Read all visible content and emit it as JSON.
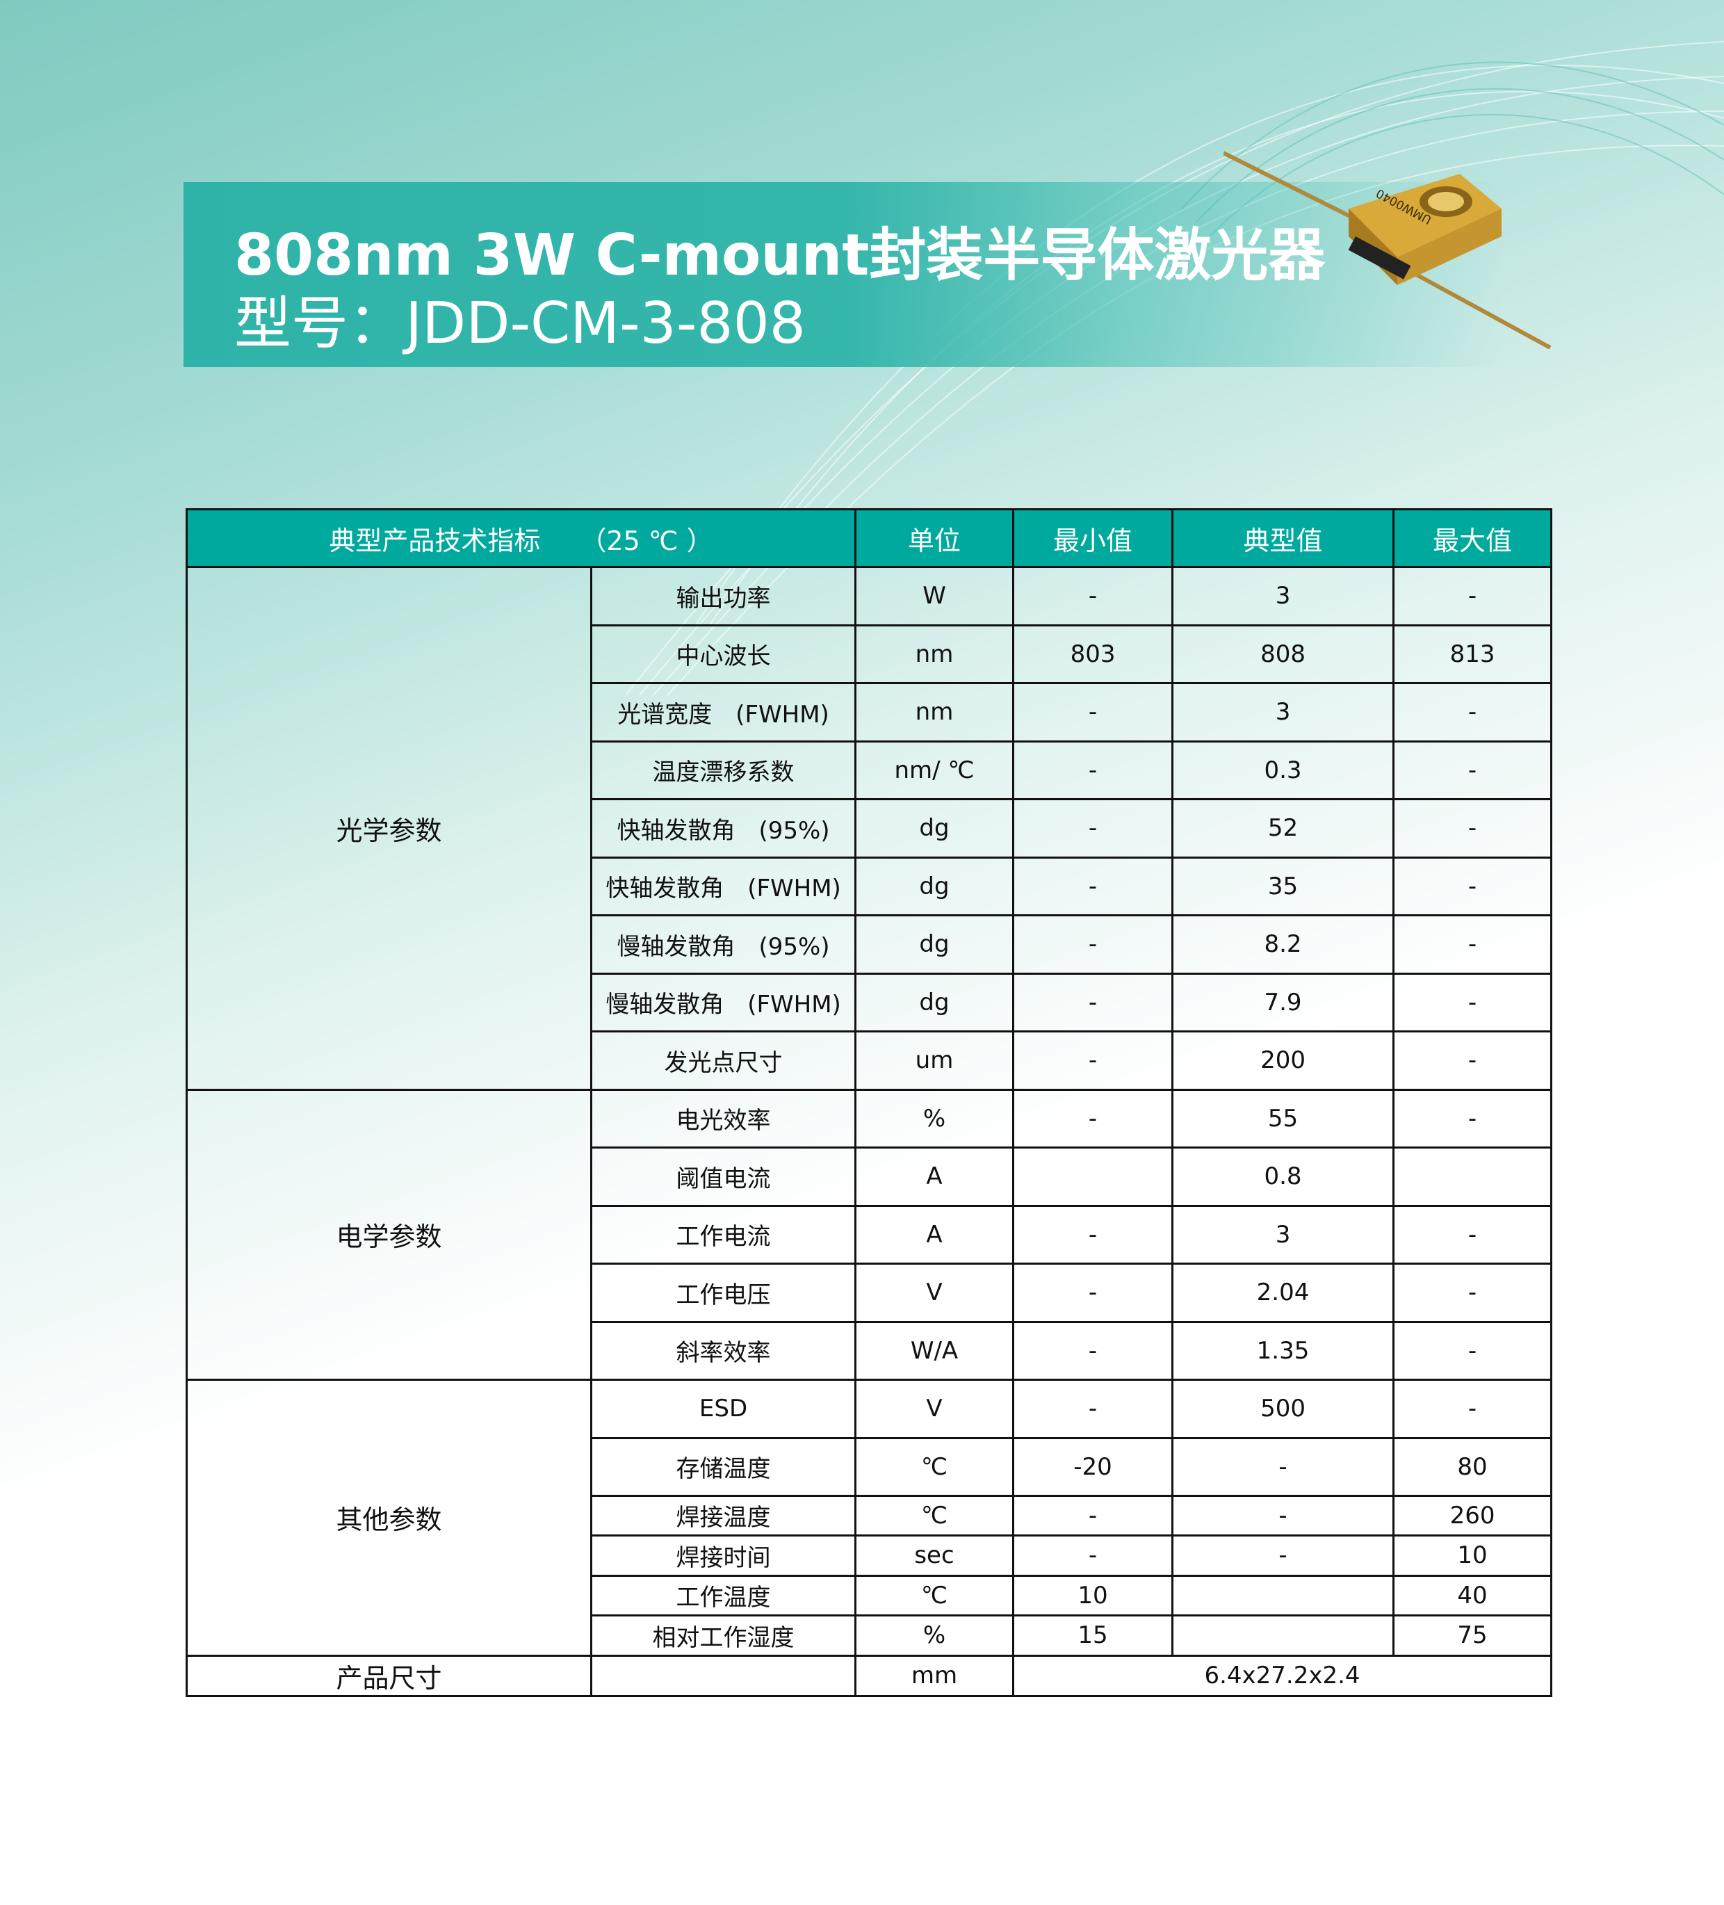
{
  "header": {
    "title": "808nm 3W C-mount封装半导体激光器",
    "model": "型号：JDD-CM-3-808"
  },
  "product_image": {
    "label": "UMW0040"
  },
  "table": {
    "columns": [
      "典型产品技术指标　　（25 ℃ ）",
      "单位",
      "最小值",
      "典型值",
      "最大值"
    ],
    "groups": [
      {
        "name": "光学参数",
        "rows": [
          [
            "输出功率",
            "W",
            "-",
            "3",
            "-"
          ],
          [
            "中心波长",
            "nm",
            "803",
            "808",
            "813"
          ],
          [
            "光谱宽度　(FWHM)",
            "nm",
            "-",
            "3",
            "-"
          ],
          [
            "温度漂移系数",
            "nm/ ℃",
            "-",
            "0.3",
            "-"
          ],
          [
            "快轴发散角　(95%)",
            "dg",
            "-",
            "52",
            "-"
          ],
          [
            "快轴发散角　(FWHM)",
            "dg",
            "-",
            "35",
            "-"
          ],
          [
            "慢轴发散角　(95%)",
            "dg",
            "-",
            "8.2",
            "-"
          ],
          [
            "慢轴发散角　(FWHM)",
            "dg",
            "-",
            "7.9",
            "-"
          ],
          [
            "发光点尺寸",
            "um",
            "-",
            "200",
            "-"
          ]
        ]
      },
      {
        "name": "电学参数",
        "rows": [
          [
            "电光效率",
            "%",
            "-",
            "55",
            "-"
          ],
          [
            "阈值电流",
            "A",
            "",
            "0.8",
            ""
          ],
          [
            "工作电流",
            "A",
            "-",
            "3",
            "-"
          ],
          [
            "工作电压",
            "V",
            "-",
            "2.04",
            "-"
          ],
          [
            "斜率效率",
            "W/A",
            "-",
            "1.35",
            "-"
          ]
        ]
      },
      {
        "name": "其他参数",
        "rows": [
          [
            "ESD",
            "V",
            "-",
            "500",
            "-"
          ],
          [
            "存储温度",
            "℃",
            "-20",
            "-",
            "80"
          ],
          [
            "焊接温度",
            "℃",
            "-",
            "-",
            "260"
          ],
          [
            "焊接时间",
            "sec",
            "-",
            "-",
            "10"
          ],
          [
            "工作温度",
            "℃",
            "10",
            "",
            "40"
          ],
          [
            "相对工作湿度",
            "%",
            "15",
            "",
            "75"
          ]
        ]
      }
    ],
    "size": {
      "name": "产品尺寸",
      "param": "",
      "unit": "mm",
      "value": "6.4x27.2x2.4"
    }
  },
  "colors": {
    "accent": "#00a99d",
    "banner": "#35b6ab"
  }
}
